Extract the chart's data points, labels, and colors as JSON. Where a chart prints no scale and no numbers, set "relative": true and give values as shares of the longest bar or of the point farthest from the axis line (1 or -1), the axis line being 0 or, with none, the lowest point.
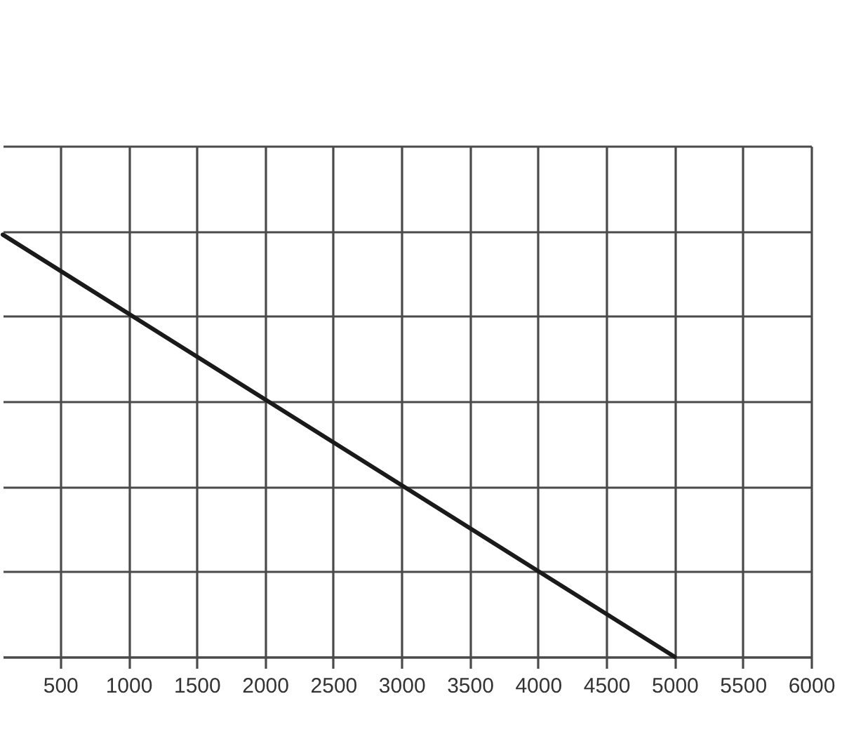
{
  "chart_data": {
    "type": "line",
    "x": [
      80,
      5000
    ],
    "values": [
      1,
      0
    ],
    "color": "#1a1a1a",
    "relative": true,
    "xlim": [
      80,
      6000
    ],
    "xticks": [
      500,
      1000,
      1500,
      2000,
      2500,
      3000,
      3500,
      4000,
      4500,
      5000,
      5500,
      6000
    ],
    "grid": true,
    "tick_labels": "x",
    "line_style": "solid"
  }
}
